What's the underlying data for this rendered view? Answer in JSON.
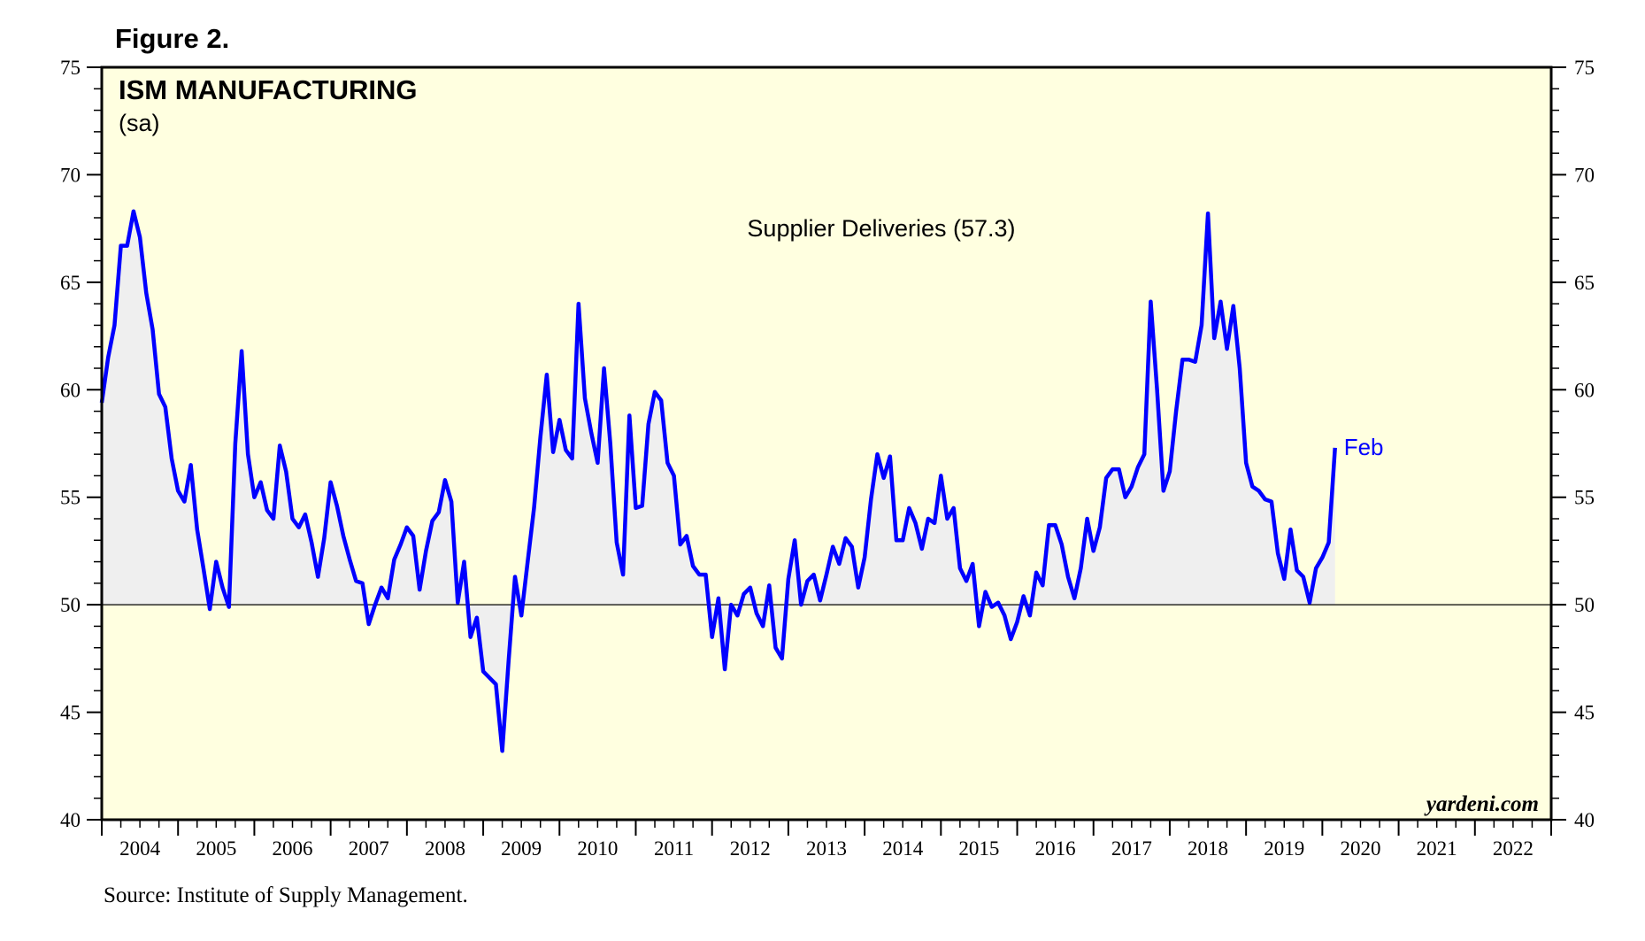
{
  "figure_label": "Figure 2.",
  "source_note": "Source: Institute of Supply Management.",
  "watermark": "yardeni.com",
  "chart_data": {
    "type": "line",
    "title": "ISM MANUFACTURING",
    "subtitle": "(sa)",
    "series": [
      {
        "name": "Supplier Deliveries (57.3)",
        "color": "#0000ff",
        "fill_color": "#efefef",
        "start": "2004-01",
        "end_label": "Feb",
        "values": [
          59.4,
          61.5,
          63.0,
          66.7,
          66.7,
          68.3,
          67.1,
          64.5,
          62.8,
          59.8,
          59.2,
          56.8,
          55.3,
          54.8,
          56.5,
          53.5,
          51.7,
          49.8,
          52.0,
          50.8,
          49.9,
          57.5,
          61.8,
          57.0,
          55.0,
          55.7,
          54.4,
          54.0,
          57.4,
          56.2,
          54.0,
          53.6,
          54.2,
          52.9,
          51.3,
          53.1,
          55.7,
          54.6,
          53.2,
          52.1,
          51.1,
          51.0,
          49.1,
          50.0,
          50.8,
          50.3,
          52.1,
          52.8,
          53.6,
          53.2,
          50.7,
          52.5,
          53.9,
          54.3,
          55.8,
          54.8,
          50.1,
          52.0,
          48.5,
          49.4,
          46.9,
          46.6,
          46.3,
          43.2,
          47.4,
          51.3,
          49.5,
          52.0,
          54.5,
          57.8,
          60.7,
          57.1,
          58.6,
          57.2,
          56.8,
          64.0,
          59.6,
          58.0,
          56.6,
          61.0,
          57.5,
          52.9,
          51.4,
          58.8,
          54.5,
          54.6,
          58.4,
          59.9,
          59.5,
          56.6,
          56.0,
          52.8,
          53.2,
          51.8,
          51.4,
          51.4,
          48.5,
          50.3,
          47.0,
          50.0,
          49.5,
          50.5,
          50.8,
          49.6,
          49.0,
          50.9,
          48.0,
          47.5,
          51.2,
          53.0,
          50.0,
          51.1,
          51.4,
          50.2,
          51.4,
          52.7,
          51.9,
          53.1,
          52.7,
          50.8,
          52.2,
          54.9,
          57.0,
          55.9,
          56.9,
          53.0,
          53.0,
          54.5,
          53.8,
          52.6,
          54.0,
          53.8,
          56.0,
          54.0,
          54.5,
          51.7,
          51.1,
          51.9,
          49.0,
          50.6,
          49.9,
          50.1,
          49.5,
          48.4,
          49.2,
          50.4,
          49.5,
          51.5,
          50.9,
          53.7,
          53.7,
          52.8,
          51.3,
          50.3,
          51.7,
          54.0,
          52.5,
          53.6,
          55.9,
          56.3,
          56.3,
          55.0,
          55.5,
          56.4,
          57.0,
          64.1,
          60.0,
          55.3,
          56.2,
          59.0,
          61.4,
          61.4,
          61.3,
          63.0,
          68.2,
          62.4,
          64.1,
          61.9,
          63.9,
          61.0,
          56.6,
          55.5,
          55.3,
          54.9,
          54.8,
          52.4,
          51.2,
          53.5,
          51.6,
          51.3,
          50.1,
          51.7,
          52.2,
          52.9,
          57.3
        ]
      }
    ],
    "x_labels": [
      "2004",
      "2005",
      "2006",
      "2007",
      "2008",
      "2009",
      "2010",
      "2011",
      "2012",
      "2013",
      "2014",
      "2015",
      "2016",
      "2017",
      "2018",
      "2019",
      "2020",
      "2021",
      "2022"
    ],
    "xlim": [
      2004,
      2023
    ],
    "ylim": [
      40,
      75
    ],
    "y_ticks": [
      40,
      45,
      50,
      55,
      60,
      65,
      70,
      75
    ],
    "y_tick_labels": [
      "40",
      "45",
      "50",
      "55",
      "60",
      "65",
      "70",
      "75"
    ],
    "reference_line": 50,
    "grid": false,
    "background_color": "#ffffe0",
    "axes": "left and right"
  }
}
